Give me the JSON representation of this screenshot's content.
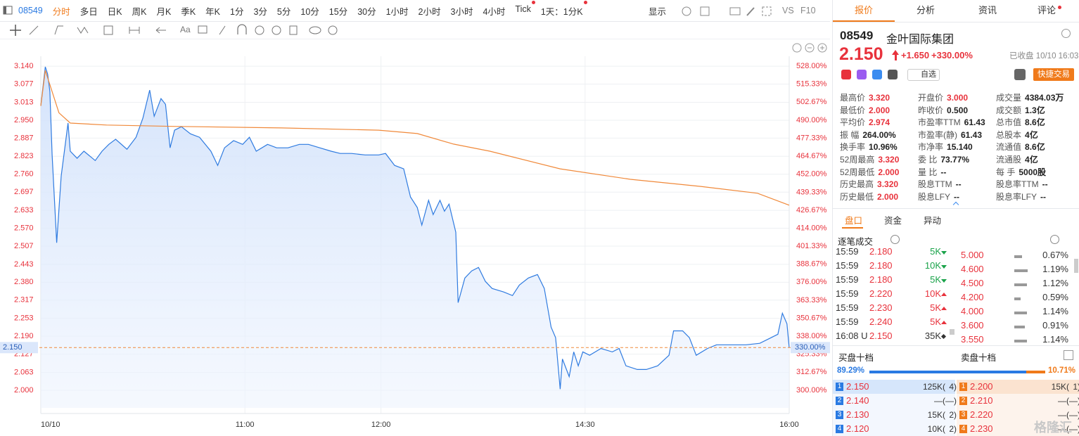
{
  "toolbar": {
    "code": "08549",
    "periods": [
      "分时",
      "多日",
      "日K",
      "周K",
      "月K",
      "季K",
      "年K",
      "1分",
      "3分",
      "5分",
      "10分",
      "15分",
      "30分",
      "1小时",
      "2小时",
      "3小时",
      "4小时",
      "Tick",
      "1天：1分K"
    ],
    "display": "显示",
    "vs": "VS",
    "f10": "F10",
    "font_tool": "Aa"
  },
  "chart_data": {
    "type": "line",
    "series": [
      {
        "color": "#2f7be0",
        "fill": true,
        "x": [
          "09:30",
          "09:32",
          "09:33",
          "09:34",
          "09:35",
          "09:37",
          "09:39",
          "09:42",
          "09:43",
          "09:46",
          "09:49",
          "09:54",
          "09:57",
          "10:00",
          "10:03",
          "10:08",
          "10:12",
          "10:15",
          "10:18",
          "10:20",
          "10:23",
          "10:25",
          "10:27",
          "10:29",
          "10:32",
          "10:36",
          "10:40",
          "10:45",
          "10:48",
          "10:51",
          "10:55",
          "10:59",
          "11:02",
          "11:05",
          "11:10",
          "11:14",
          "11:19",
          "11:24",
          "11:28",
          "11:33",
          "11:38",
          "11:42",
          "11:47",
          "11:53",
          "11:59",
          "13:02",
          "13:06",
          "13:10",
          "13:13",
          "13:16",
          "13:18",
          "13:21",
          "13:23",
          "13:26",
          "13:28",
          "13:30",
          "13:33",
          "13:34",
          "13:37",
          "13:40",
          "13:43",
          "13:46",
          "13:49",
          "13:54",
          "13:58",
          "14:01",
          "14:05",
          "14:09",
          "14:12",
          "14:15",
          "14:17",
          "14:19",
          "14:20",
          "14:23",
          "14:25",
          "14:27",
          "14:29",
          "14:32",
          "14:37",
          "14:42",
          "14:45",
          "14:48",
          "14:53",
          "14:57",
          "15:02",
          "15:07",
          "15:09",
          "15:13",
          "15:16",
          "15:19",
          "15:24",
          "15:28",
          "15:35",
          "15:41",
          "15:47",
          "15:52",
          "15:55",
          "15:57",
          "15:59",
          "16:00"
        ],
        "values": [
          3.001,
          3.138,
          3.113,
          3.051,
          2.828,
          2.519,
          2.754,
          2.94,
          2.841,
          2.816,
          2.841,
          2.808,
          2.841,
          2.865,
          2.883,
          2.848,
          2.89,
          2.957,
          3.056,
          2.964,
          3.026,
          3.006,
          2.853,
          2.915,
          2.927,
          2.902,
          2.89,
          2.841,
          2.791,
          2.853,
          2.878,
          2.865,
          2.89,
          2.841,
          2.865,
          2.853,
          2.853,
          2.865,
          2.865,
          2.853,
          2.841,
          2.833,
          2.833,
          2.828,
          2.828,
          2.833,
          2.791,
          2.779,
          2.68,
          2.643,
          2.581,
          2.668,
          2.618,
          2.668,
          2.63,
          2.655,
          2.556,
          2.308,
          2.395,
          2.42,
          2.432,
          2.383,
          2.358,
          2.346,
          2.333,
          2.37,
          2.395,
          2.407,
          2.358,
          2.222,
          2.185,
          2.004,
          2.11,
          2.048,
          2.135,
          2.086,
          2.135,
          2.123,
          2.147,
          2.135,
          2.147,
          2.086,
          2.073,
          2.073,
          2.086,
          2.123,
          2.209,
          2.209,
          2.185,
          2.123,
          2.147,
          2.16,
          2.16,
          2.16,
          2.165,
          2.185,
          2.197,
          2.271,
          2.234,
          2.15
        ]
      },
      {
        "color": "#f0893a",
        "fill": false,
        "x": [
          "09:30",
          "09:32",
          "09:38",
          "09:43",
          "09:59",
          "10:30",
          "11:16",
          "11:59",
          "13:16",
          "13:32",
          "13:48",
          "14:19",
          "14:50",
          "15:21",
          "15:46",
          "16:00"
        ],
        "values": [
          3.0,
          3.125,
          2.976,
          2.94,
          2.933,
          2.928,
          2.923,
          2.915,
          2.903,
          2.866,
          2.841,
          2.779,
          2.742,
          2.717,
          2.693,
          2.651
        ]
      }
    ],
    "ylim": [
      1.938,
      3.175
    ],
    "yticks": [
      {
        "value": 3.14,
        "label": "3.140"
      },
      3.077,
      3.013,
      {
        "value": 2.95,
        "label": "2.950"
      },
      2.887,
      2.823,
      {
        "value": 2.76,
        "label": "2.760"
      },
      2.697,
      2.633,
      {
        "value": 2.57,
        "label": "2.570"
      },
      2.507,
      2.443,
      {
        "value": 2.38,
        "label": "2.380"
      },
      2.317,
      2.253,
      {
        "value": 2.19,
        "label": "2.190"
      },
      2.127,
      2.063,
      {
        "value": 2.0,
        "label": "2.000"
      }
    ],
    "y2lim": [
      287.6,
      535
    ],
    "y2ticks": [
      {
        "value": 528,
        "label": "528.00%"
      },
      {
        "value": 515.33,
        "label": "515.33%"
      },
      {
        "value": 502.67,
        "label": "502.67%"
      },
      {
        "value": 490,
        "label": "490.00%"
      },
      {
        "value": 477.33,
        "label": "477.33%"
      },
      {
        "value": 464.67,
        "label": "464.67%"
      },
      {
        "value": 452,
        "label": "452.00%"
      },
      {
        "value": 439.33,
        "label": "439.33%"
      },
      {
        "value": 426.67,
        "label": "426.67%"
      },
      {
        "value": 414,
        "label": "414.00%"
      },
      {
        "value": 401.33,
        "label": "401.33%"
      },
      {
        "value": 388.67,
        "label": "388.67%"
      },
      {
        "value": 376,
        "label": "376.00%"
      },
      {
        "value": 363.33,
        "label": "363.33%"
      },
      {
        "value": 350.67,
        "label": "350.67%"
      },
      {
        "value": 338,
        "label": "338.00%"
      },
      {
        "value": 325.33,
        "label": "325.33%"
      },
      {
        "value": 312.67,
        "label": "312.67%"
      },
      {
        "value": 300,
        "label": "300.00%"
      }
    ],
    "xticks": [
      {
        "value": "09:30",
        "label": "10/10"
      },
      "11:00",
      "12:00",
      "14:30",
      "16:00"
    ],
    "last_price": {
      "value": 2.15,
      "label": "2.150"
    },
    "last_change": {
      "value": 330,
      "label": "330.00%"
    },
    "grid": true
  },
  "quote_panel": {
    "tabs": [
      "报价",
      "分析",
      "资讯",
      "评论"
    ],
    "code": "08549",
    "name": "金叶国际集团",
    "price": "2.150",
    "change": "+1.650",
    "change_pct": "+330.00%",
    "status": "已收盘 10/10 16:03",
    "watch": "自选",
    "quick_trade": "快捷交易",
    "stats": [
      [
        {
          "label": "最高价",
          "value": "3.320",
          "color": "#e8323c"
        },
        {
          "label": "开盘价",
          "value": "3.000",
          "color": "#e8323c"
        },
        {
          "label": "成交量",
          "value": "4384.03万",
          "color": "#222"
        }
      ],
      [
        {
          "label": "最低价",
          "value": "2.000",
          "color": "#e8323c"
        },
        {
          "label": "昨收价",
          "value": "0.500",
          "color": "#222"
        },
        {
          "label": "成交额",
          "value": "1.3亿",
          "color": "#222"
        }
      ],
      [
        {
          "label": "平均价",
          "value": "2.974",
          "color": "#e8323c"
        },
        {
          "label": "市盈率TTM",
          "value": "61.43",
          "color": "#222"
        },
        {
          "label": "总市值",
          "value": "8.6亿",
          "color": "#222"
        }
      ],
      [
        {
          "label": "振 幅",
          "value": "264.00%",
          "color": "#222"
        },
        {
          "label": "市盈率(静)",
          "value": "61.43",
          "color": "#222"
        },
        {
          "label": "总股本",
          "value": "4亿",
          "color": "#222"
        }
      ],
      [
        {
          "label": "换手率",
          "value": "10.96%",
          "color": "#222"
        },
        {
          "label": "市净率",
          "value": "15.140",
          "color": "#222"
        },
        {
          "label": "流通值",
          "value": "8.6亿",
          "color": "#222"
        }
      ],
      [
        {
          "label": "52周最高",
          "value": "3.320",
          "color": "#e8323c"
        },
        {
          "label": "委 比",
          "value": "73.77%",
          "color": "#222"
        },
        {
          "label": "流通股",
          "value": "4亿",
          "color": "#222"
        }
      ],
      [
        {
          "label": "52周最低",
          "value": "2.000",
          "color": "#e8323c"
        },
        {
          "label": "量 比",
          "value": "--",
          "color": "#222"
        },
        {
          "label": "每 手",
          "value": "5000股",
          "color": "#222"
        }
      ],
      [
        {
          "label": "历史最高",
          "value": "3.320",
          "color": "#e8323c"
        },
        {
          "label": "股息TTM",
          "value": "--",
          "color": "#222"
        },
        {
          "label": "股息率TTM",
          "value": "--",
          "color": "#222"
        }
      ],
      [
        {
          "label": "历史最低",
          "value": "2.000",
          "color": "#e8323c"
        },
        {
          "label": "股息LFY",
          "value": "--",
          "color": "#222"
        },
        {
          "label": "股息率LFY",
          "value": "--",
          "color": "#222"
        }
      ]
    ],
    "sub_tabs": [
      "盘口",
      "资金",
      "异动"
    ],
    "trades_title": "逐笔成交",
    "trades": [
      {
        "time": "15:59",
        "price": "2.180",
        "volume": "5K",
        "direction": "down"
      },
      {
        "time": "15:59",
        "price": "2.180",
        "volume": "10K",
        "direction": "down"
      },
      {
        "time": "15:59",
        "price": "2.180",
        "volume": "5K",
        "direction": "down"
      },
      {
        "time": "15:59",
        "price": "2.220",
        "volume": "10K",
        "direction": "up"
      },
      {
        "time": "15:59",
        "price": "2.230",
        "volume": "5K",
        "direction": "up"
      },
      {
        "time": "15:59",
        "price": "2.240",
        "volume": "5K",
        "direction": "up"
      },
      {
        "time": "16:08 U",
        "price": "2.150",
        "volume": "35K",
        "direction": "flat"
      }
    ],
    "price_distribution": [
      {
        "price": "5.000",
        "share": {
          "value": 0.67,
          "label": "0.67%"
        }
      },
      {
        "price": "4.600",
        "share": {
          "value": 1.19,
          "label": "1.19%"
        }
      },
      {
        "price": "4.500",
        "share": {
          "value": 1.12,
          "label": "1.12%"
        }
      },
      {
        "price": "4.200",
        "share": {
          "value": 0.59,
          "label": "0.59%"
        }
      },
      {
        "price": "4.000",
        "share": {
          "value": 1.14,
          "label": "1.14%"
        }
      },
      {
        "price": "3.600",
        "share": {
          "value": 0.91,
          "label": "0.91%"
        }
      },
      {
        "price": "3.550",
        "share": {
          "value": 1.14,
          "label": "1.14%"
        }
      }
    ],
    "bid_title": "买盘十档",
    "ask_title": "卖盘十档",
    "bid_ratio": {
      "value": 89.29,
      "label": "89.29%"
    },
    "ask_ratio": {
      "value": 10.71,
      "label": "10.71%"
    },
    "bids": [
      {
        "level": "1",
        "price": "2.150",
        "volume": "125K(",
        "orders": "4)"
      },
      {
        "level": "2",
        "price": "2.140",
        "volume": "—(",
        "orders": "—)"
      },
      {
        "level": "3",
        "price": "2.130",
        "volume": "15K(",
        "orders": "2)"
      },
      {
        "level": "4",
        "price": "2.120",
        "volume": "10K(",
        "orders": "2)"
      }
    ],
    "asks": [
      {
        "level": "1",
        "price": "2.200",
        "volume": "15K(",
        "orders": "1)"
      },
      {
        "level": "2",
        "price": "2.210",
        "volume": "—(",
        "orders": "—)"
      },
      {
        "level": "3",
        "price": "2.220",
        "volume": "—(",
        "orders": "—)"
      },
      {
        "level": "4",
        "price": "2.230",
        "volume": "—(",
        "orders": "—)"
      }
    ]
  },
  "watermark": "格隆汇"
}
